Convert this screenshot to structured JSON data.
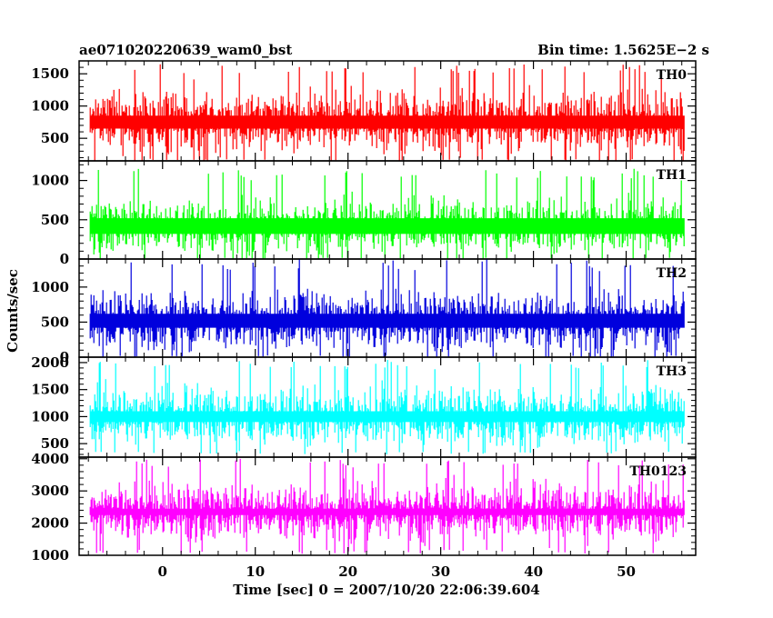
{
  "chart_data": {
    "type": "line",
    "title_left": "ae071020220639_wam0_bst",
    "title_right": "Bin time: 1.5625E−2 s",
    "xlabel": "Time [sec] 0 = 2007/10/20 22:06:39.604",
    "ylabel": "Counts/sec",
    "xlim": [
      -9,
      57.5
    ],
    "x_ticks": [
      0,
      10,
      20,
      30,
      40,
      50
    ],
    "x_tick_labels": [
      "0",
      "10",
      "20",
      "30",
      "40",
      "50"
    ],
    "data_x_range": [
      -7.8,
      56.2
    ],
    "bin_time_s": 0.015625,
    "panels": [
      {
        "name": "TH0",
        "color": "#ff0000",
        "ylim": [
          150,
          1700
        ],
        "y_ticks": [
          500,
          1000,
          1500
        ],
        "y_tick_labels": [
          "500",
          "1000",
          "1500"
        ],
        "baseline": 750,
        "typical_low": 200,
        "typical_high": 1350,
        "spike_max": 1650,
        "trough_min": 150
      },
      {
        "name": "TH1",
        "color": "#00ff00",
        "ylim": [
          0,
          1250
        ],
        "y_ticks": [
          0,
          500,
          1000
        ],
        "y_tick_labels": [
          "0",
          "500",
          "1000"
        ],
        "baseline": 420,
        "typical_low": 30,
        "typical_high": 850,
        "spike_max": 1150,
        "trough_min": 0
      },
      {
        "name": "TH2",
        "color": "#0000dd",
        "ylim": [
          0,
          1400
        ],
        "y_ticks": [
          0,
          500,
          1000
        ],
        "y_tick_labels": [
          "0",
          "500",
          "1000"
        ],
        "baseline": 520,
        "typical_low": 40,
        "typical_high": 1050,
        "spike_max": 1400,
        "trough_min": 0
      },
      {
        "name": "TH3",
        "color": "#00ffff",
        "ylim": [
          250,
          2100
        ],
        "y_ticks": [
          500,
          1000,
          1500,
          2000
        ],
        "y_tick_labels": [
          "500",
          "1000",
          "1500",
          "2000"
        ],
        "baseline": 1000,
        "typical_low": 400,
        "typical_high": 1700,
        "spike_max": 2050,
        "trough_min": 300
      },
      {
        "name": "TH0123",
        "color": "#ff00ff",
        "ylim": [
          1000,
          4050
        ],
        "y_ticks": [
          1000,
          2000,
          3000,
          4000
        ],
        "y_tick_labels": [
          "1000",
          "2000",
          "3000",
          "4000"
        ],
        "baseline": 2350,
        "typical_low": 1300,
        "typical_high": 3450,
        "spike_max": 4000,
        "trough_min": 1050
      }
    ]
  }
}
